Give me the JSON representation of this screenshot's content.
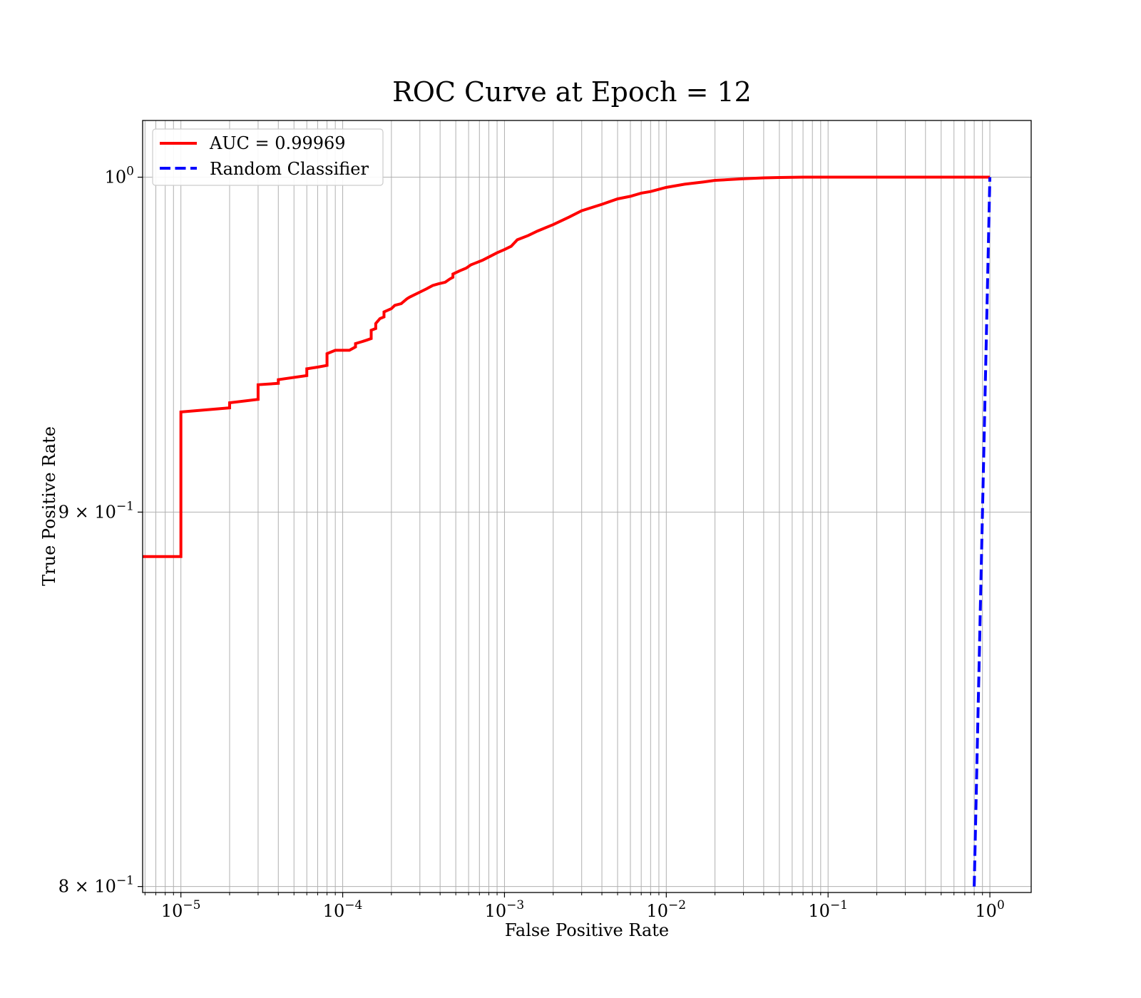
{
  "chart_data": {
    "type": "line",
    "title": "ROC Curve at Epoch = 12",
    "xlabel": "False Positive Rate",
    "ylabel": "True Positive Rate",
    "xscale": "log",
    "yscale": "log",
    "xlim": [
      5.8e-06,
      1.8
    ],
    "ylim": [
      0.7985,
      1.018
    ],
    "grid": "both (major and minor)",
    "legend": "top-left",
    "x_ticks": [
      {
        "value": 1e-05,
        "base": "10",
        "exp": "−5"
      },
      {
        "value": 0.0001,
        "base": "10",
        "exp": "−4"
      },
      {
        "value": 0.001,
        "base": "10",
        "exp": "−3"
      },
      {
        "value": 0.01,
        "base": "10",
        "exp": "−2"
      },
      {
        "value": 0.1,
        "base": "10",
        "exp": "−1"
      },
      {
        "value": 1,
        "base": "10",
        "exp": "0"
      }
    ],
    "y_ticks": [
      {
        "value": 1.0,
        "mant": "",
        "base": "10",
        "exp": "0"
      },
      {
        "value": 0.9,
        "mant": "9 × ",
        "base": "10",
        "exp": "−1"
      },
      {
        "value": 0.8,
        "mant": "8 × ",
        "base": "10",
        "exp": "−1"
      }
    ],
    "series": [
      {
        "name": "AUC = 0.99969",
        "color": "#ff0000",
        "style": "solid",
        "x": [
          5.8e-06,
          1e-05,
          1e-05,
          2e-05,
          2e-05,
          3e-05,
          3e-05,
          4e-05,
          4e-05,
          6e-05,
          6e-05,
          7e-05,
          8e-05,
          8e-05,
          9e-05,
          0.00011,
          0.00012,
          0.00012,
          0.00013,
          0.00014,
          0.00015,
          0.00015,
          0.00016,
          0.00016,
          0.00017,
          0.00018,
          0.00018,
          0.0002,
          0.00021,
          0.00023,
          0.00025,
          0.00026,
          0.0003,
          0.00033,
          0.00036,
          0.00039,
          0.00043,
          0.00046,
          0.00048,
          0.00048,
          0.00053,
          0.00058,
          0.00062,
          0.00065,
          0.00073,
          0.0008,
          0.0009,
          0.001,
          0.0011,
          0.0012,
          0.0014,
          0.0016,
          0.002,
          0.0025,
          0.003,
          0.004,
          0.005,
          0.006,
          0.007,
          0.008,
          0.01,
          0.013,
          0.017,
          0.02,
          0.03,
          0.04,
          0.05,
          0.07,
          0.1,
          0.2,
          0.5,
          1.0
        ],
        "y": [
          0.8875,
          0.8875,
          0.9288,
          0.93,
          0.9315,
          0.9325,
          0.9368,
          0.9372,
          0.9383,
          0.9395,
          0.9415,
          0.942,
          0.9425,
          0.946,
          0.947,
          0.947,
          0.948,
          0.949,
          0.9495,
          0.95,
          0.9505,
          0.953,
          0.9535,
          0.955,
          0.9565,
          0.957,
          0.9585,
          0.9595,
          0.9605,
          0.961,
          0.9625,
          0.963,
          0.9645,
          0.9655,
          0.9665,
          0.967,
          0.9675,
          0.9685,
          0.969,
          0.97,
          0.971,
          0.9718,
          0.9728,
          0.9732,
          0.9742,
          0.9752,
          0.9765,
          0.9775,
          0.9785,
          0.9805,
          0.9818,
          0.9832,
          0.9852,
          0.9875,
          0.9895,
          0.9915,
          0.9932,
          0.994,
          0.995,
          0.9955,
          0.9968,
          0.9978,
          0.9985,
          0.999,
          0.9995,
          0.9998,
          0.9999,
          1.0,
          1.0,
          1.0,
          1.0,
          1.0
        ]
      },
      {
        "name": "Random Classifier",
        "color": "#0000ff",
        "style": "dashed",
        "x": [
          0.8,
          0.85,
          0.9,
          0.95,
          1.0
        ],
        "y": [
          0.8,
          0.85,
          0.9,
          0.95,
          1.0
        ]
      }
    ]
  }
}
